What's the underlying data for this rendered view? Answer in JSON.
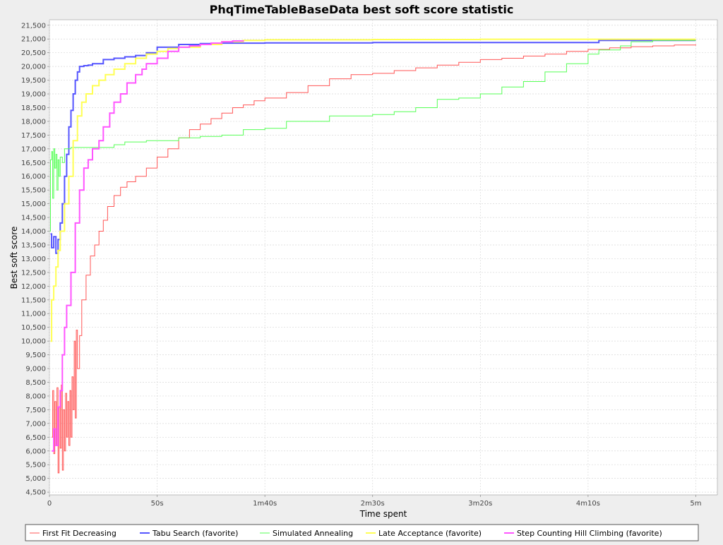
{
  "chart_data": {
    "type": "line",
    "title": "PhqTimeTableBaseData best soft score statistic",
    "xlabel": "Time spent",
    "ylabel": "Best soft score",
    "xlim": [
      0,
      310
    ],
    "ylim": [
      4400,
      21700
    ],
    "x_ticks": [
      {
        "value": 0,
        "label": "0"
      },
      {
        "value": 50,
        "label": "50s"
      },
      {
        "value": 100,
        "label": "1m40s"
      },
      {
        "value": 150,
        "label": "2m30s"
      },
      {
        "value": 200,
        "label": "3m20s"
      },
      {
        "value": 250,
        "label": "4m10s"
      },
      {
        "value": 300,
        "label": "5m"
      }
    ],
    "y_ticks": [
      {
        "value": 4500,
        "label": "4,500"
      },
      {
        "value": 5000,
        "label": "5,000"
      },
      {
        "value": 5500,
        "label": "5,500"
      },
      {
        "value": 6000,
        "label": "6,000"
      },
      {
        "value": 6500,
        "label": "6,500"
      },
      {
        "value": 7000,
        "label": "7,000"
      },
      {
        "value": 7500,
        "label": "7,500"
      },
      {
        "value": 8000,
        "label": "8,000"
      },
      {
        "value": 8500,
        "label": "8,500"
      },
      {
        "value": 9000,
        "label": "9,000"
      },
      {
        "value": 9500,
        "label": "9,500"
      },
      {
        "value": 10000,
        "label": "10,000"
      },
      {
        "value": 10500,
        "label": "10,500"
      },
      {
        "value": 11000,
        "label": "11,000"
      },
      {
        "value": 11500,
        "label": "11,500"
      },
      {
        "value": 12000,
        "label": "12,000"
      },
      {
        "value": 12500,
        "label": "12,500"
      },
      {
        "value": 13000,
        "label": "13,000"
      },
      {
        "value": 13500,
        "label": "13,500"
      },
      {
        "value": 14000,
        "label": "14,000"
      },
      {
        "value": 14500,
        "label": "14,500"
      },
      {
        "value": 15000,
        "label": "15,000"
      },
      {
        "value": 15500,
        "label": "15,500"
      },
      {
        "value": 16000,
        "label": "16,000"
      },
      {
        "value": 16500,
        "label": "16,500"
      },
      {
        "value": 17000,
        "label": "17,000"
      },
      {
        "value": 17500,
        "label": "17,500"
      },
      {
        "value": 18000,
        "label": "18,000"
      },
      {
        "value": 18500,
        "label": "18,500"
      },
      {
        "value": 19000,
        "label": "19,000"
      },
      {
        "value": 19500,
        "label": "19,500"
      },
      {
        "value": 20000,
        "label": "20,000"
      },
      {
        "value": 20500,
        "label": "20,500"
      },
      {
        "value": 21000,
        "label": "21,000"
      },
      {
        "value": 21500,
        "label": "21,500"
      }
    ],
    "grid": true,
    "legend_position": "bottom",
    "series": [
      {
        "name": "First Fit Decreasing",
        "color": "#ff5555",
        "stroke": 1,
        "points": [
          [
            1,
            6500
          ],
          [
            1.5,
            8200
          ],
          [
            2,
            5900
          ],
          [
            2.5,
            7800
          ],
          [
            3,
            6200
          ],
          [
            3.5,
            8300
          ],
          [
            4,
            5200
          ],
          [
            4.5,
            7600
          ],
          [
            5,
            6100
          ],
          [
            5.5,
            8400
          ],
          [
            6,
            5300
          ],
          [
            6.5,
            7500
          ],
          [
            7,
            6000
          ],
          [
            7.5,
            8100
          ],
          [
            8,
            6500
          ],
          [
            8.5,
            7800
          ],
          [
            9,
            6200
          ],
          [
            9.5,
            8200
          ],
          [
            10,
            6500
          ],
          [
            10.5,
            8700
          ],
          [
            11,
            7500
          ],
          [
            11.5,
            10000
          ],
          [
            12,
            7200
          ],
          [
            12.5,
            10400
          ],
          [
            13,
            9000
          ],
          [
            14,
            10200
          ],
          [
            15,
            11500
          ],
          [
            17,
            12400
          ],
          [
            19,
            13100
          ],
          [
            21,
            13500
          ],
          [
            23,
            14000
          ],
          [
            25,
            14400
          ],
          [
            27,
            14900
          ],
          [
            30,
            15300
          ],
          [
            33,
            15600
          ],
          [
            36,
            15800
          ],
          [
            40,
            16000
          ],
          [
            45,
            16300
          ],
          [
            50,
            16700
          ],
          [
            55,
            17000
          ],
          [
            60,
            17400
          ],
          [
            65,
            17700
          ],
          [
            70,
            17900
          ],
          [
            75,
            18100
          ],
          [
            80,
            18300
          ],
          [
            85,
            18500
          ],
          [
            90,
            18600
          ],
          [
            95,
            18750
          ],
          [
            100,
            18850
          ],
          [
            110,
            19050
          ],
          [
            120,
            19300
          ],
          [
            130,
            19550
          ],
          [
            140,
            19700
          ],
          [
            150,
            19750
          ],
          [
            160,
            19850
          ],
          [
            170,
            19950
          ],
          [
            180,
            20050
          ],
          [
            190,
            20150
          ],
          [
            200,
            20250
          ],
          [
            210,
            20300
          ],
          [
            220,
            20380
          ],
          [
            230,
            20450
          ],
          [
            240,
            20550
          ],
          [
            250,
            20620
          ],
          [
            260,
            20680
          ],
          [
            270,
            20720
          ],
          [
            280,
            20750
          ],
          [
            290,
            20780
          ],
          [
            300,
            20800
          ]
        ]
      },
      {
        "name": "Tabu Search (favorite)",
        "color": "#5555ff",
        "stroke": 2,
        "points": [
          [
            0.5,
            13900
          ],
          [
            1,
            13400
          ],
          [
            2,
            13800
          ],
          [
            3,
            13200
          ],
          [
            4,
            13700
          ],
          [
            5,
            14300
          ],
          [
            6,
            15000
          ],
          [
            7,
            16000
          ],
          [
            8,
            16800
          ],
          [
            9,
            17800
          ],
          [
            10,
            18400
          ],
          [
            11,
            19000
          ],
          [
            12,
            19500
          ],
          [
            13,
            19800
          ],
          [
            14,
            20000
          ],
          [
            16,
            20030
          ],
          [
            18,
            20050
          ],
          [
            20,
            20100
          ],
          [
            25,
            20250
          ],
          [
            30,
            20300
          ],
          [
            35,
            20350
          ],
          [
            40,
            20400
          ],
          [
            45,
            20500
          ],
          [
            50,
            20700
          ],
          [
            60,
            20800
          ],
          [
            70,
            20830
          ],
          [
            80,
            20850
          ],
          [
            100,
            20860
          ],
          [
            150,
            20870
          ],
          [
            200,
            20870
          ],
          [
            240,
            20870
          ],
          [
            255,
            20950
          ],
          [
            300,
            20950
          ]
        ]
      },
      {
        "name": "Simulated Annealing",
        "color": "#55ff55",
        "stroke": 1,
        "points": [
          [
            0.2,
            14000
          ],
          [
            0.5,
            16600
          ],
          [
            1,
            16900
          ],
          [
            1.5,
            15200
          ],
          [
            2,
            17000
          ],
          [
            2.5,
            16300
          ],
          [
            3,
            16800
          ],
          [
            3.5,
            15500
          ],
          [
            4,
            16600
          ],
          [
            4.5,
            16000
          ],
          [
            5,
            16700
          ],
          [
            6,
            16500
          ],
          [
            7,
            17000
          ],
          [
            10,
            17050
          ],
          [
            20,
            17050
          ],
          [
            30,
            17150
          ],
          [
            35,
            17250
          ],
          [
            45,
            17300
          ],
          [
            60,
            17400
          ],
          [
            70,
            17450
          ],
          [
            80,
            17500
          ],
          [
            90,
            17700
          ],
          [
            100,
            17750
          ],
          [
            110,
            18000
          ],
          [
            130,
            18200
          ],
          [
            150,
            18250
          ],
          [
            160,
            18350
          ],
          [
            170,
            18500
          ],
          [
            180,
            18800
          ],
          [
            190,
            18850
          ],
          [
            200,
            19000
          ],
          [
            210,
            19250
          ],
          [
            220,
            19450
          ],
          [
            230,
            19800
          ],
          [
            240,
            20100
          ],
          [
            250,
            20450
          ],
          [
            255,
            20600
          ],
          [
            265,
            20750
          ],
          [
            270,
            20900
          ],
          [
            280,
            20950
          ],
          [
            300,
            20950
          ]
        ]
      },
      {
        "name": "Late Acceptance (favorite)",
        "color": "#ffff55",
        "stroke": 2,
        "points": [
          [
            0.5,
            10000
          ],
          [
            1,
            11500
          ],
          [
            2,
            12000
          ],
          [
            3,
            12700
          ],
          [
            4,
            13300
          ],
          [
            5,
            14000
          ],
          [
            7,
            15000
          ],
          [
            9,
            16000
          ],
          [
            11,
            17300
          ],
          [
            13,
            18200
          ],
          [
            15,
            18700
          ],
          [
            17,
            19000
          ],
          [
            20,
            19300
          ],
          [
            23,
            19500
          ],
          [
            26,
            19700
          ],
          [
            30,
            19900
          ],
          [
            35,
            20100
          ],
          [
            40,
            20300
          ],
          [
            45,
            20450
          ],
          [
            50,
            20550
          ],
          [
            55,
            20650
          ],
          [
            60,
            20700
          ],
          [
            70,
            20800
          ],
          [
            80,
            20900
          ],
          [
            90,
            20950
          ],
          [
            100,
            20970
          ],
          [
            150,
            20980
          ],
          [
            200,
            20990
          ],
          [
            250,
            20990
          ],
          [
            300,
            20990
          ]
        ]
      },
      {
        "name": "Step Counting Hill Climbing (favorite)",
        "color": "#ff55ff",
        "stroke": 2,
        "points": [
          [
            1,
            6000
          ],
          [
            2,
            6800
          ],
          [
            3,
            6200
          ],
          [
            4,
            7600
          ],
          [
            5,
            8200
          ],
          [
            6,
            9500
          ],
          [
            7,
            10500
          ],
          [
            8,
            11300
          ],
          [
            10,
            12500
          ],
          [
            12,
            14300
          ],
          [
            14,
            15500
          ],
          [
            16,
            16300
          ],
          [
            18,
            16600
          ],
          [
            20,
            17000
          ],
          [
            23,
            17300
          ],
          [
            25,
            17800
          ],
          [
            28,
            18300
          ],
          [
            30,
            18700
          ],
          [
            33,
            19000
          ],
          [
            36,
            19400
          ],
          [
            40,
            19700
          ],
          [
            43,
            19900
          ],
          [
            45,
            20100
          ],
          [
            50,
            20300
          ],
          [
            55,
            20550
          ],
          [
            60,
            20700
          ],
          [
            65,
            20750
          ],
          [
            70,
            20800
          ],
          [
            75,
            20850
          ],
          [
            80,
            20900
          ],
          [
            85,
            20930
          ],
          [
            90,
            20950
          ]
        ]
      }
    ]
  }
}
